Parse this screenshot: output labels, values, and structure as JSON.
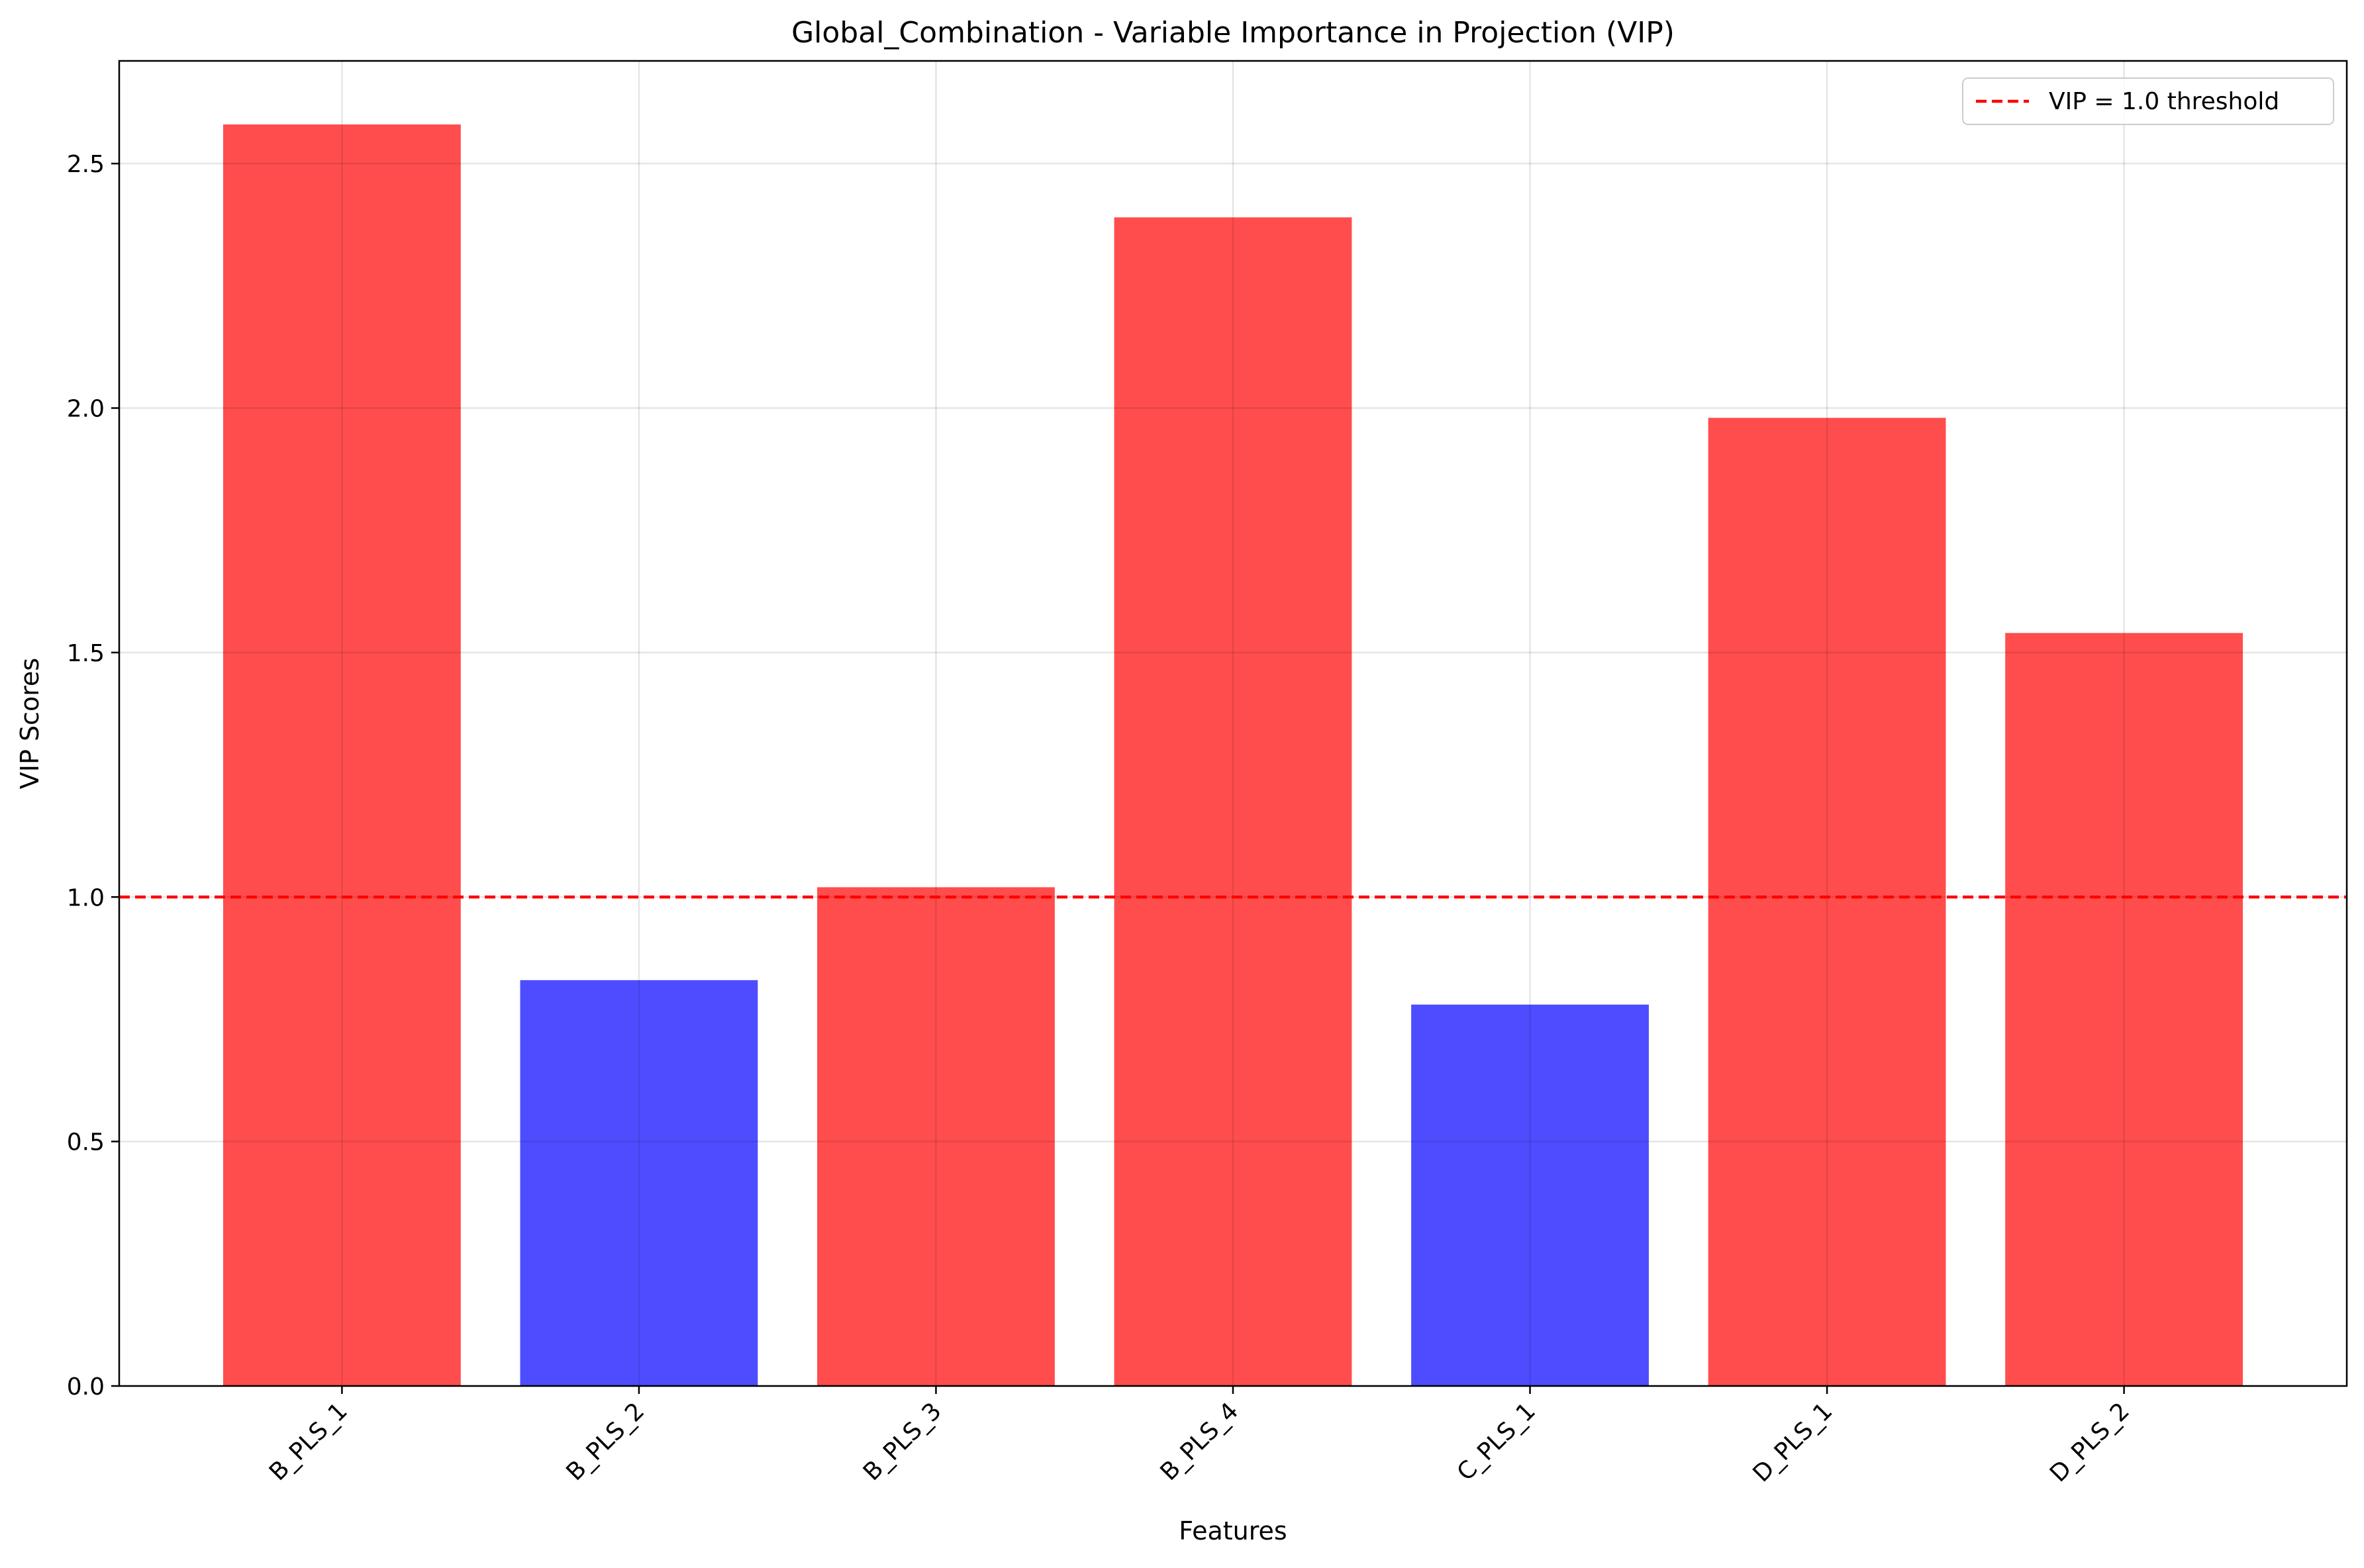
{
  "chart_data": {
    "type": "bar",
    "title": "Global_Combination - Variable Importance in Projection (VIP)",
    "xlabel": "Features",
    "ylabel": "VIP Scores",
    "categories": [
      "B_PLS_1",
      "B_PLS_2",
      "B_PLS_3",
      "B_PLS_4",
      "C_PLS_1",
      "D_PLS_1",
      "D_PLS_2"
    ],
    "values": [
      2.58,
      0.83,
      1.02,
      2.39,
      0.78,
      1.98,
      1.54
    ],
    "ylim": [
      0,
      2.71
    ],
    "yticks": [
      0.0,
      0.5,
      1.0,
      1.5,
      2.0,
      2.5
    ],
    "ytick_labels": [
      "0.0",
      "0.5",
      "1.0",
      "1.5",
      "2.0",
      "2.5"
    ],
    "threshold": 1.0,
    "threshold_label": "VIP = 1.0 threshold",
    "colors": {
      "above_threshold": "#ff4d4d",
      "below_threshold": "#4d4dff",
      "threshold_line": "#ff0000"
    },
    "grid": true,
    "legend_position": "top-right"
  }
}
